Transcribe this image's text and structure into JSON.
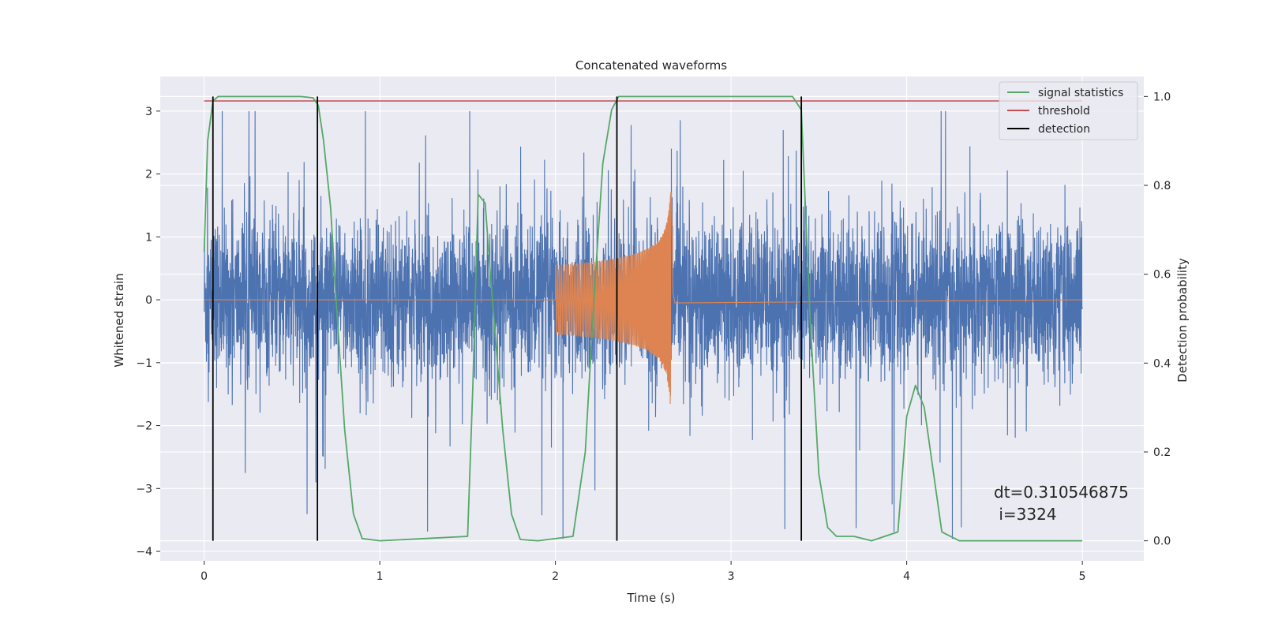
{
  "chart_data": {
    "type": "line",
    "title": "Concatenated waveforms",
    "xlabel": "Time (s)",
    "ylabel": "Whitened strain",
    "ylabel_right": "Detection probability",
    "xlim": [
      -0.25,
      5.35
    ],
    "ylim": [
      -4.15,
      3.55
    ],
    "ylim_right": [
      -0.045,
      1.045
    ],
    "x_ticks": [
      0,
      1,
      2,
      3,
      4,
      5
    ],
    "y_ticks": [
      -4,
      -3,
      -2,
      -1,
      0,
      1,
      2,
      3
    ],
    "y_ticks_right": [
      0.0,
      0.2,
      0.4,
      0.6,
      0.8,
      1.0
    ],
    "x_tick_labels": [
      "0",
      "1",
      "2",
      "3",
      "4",
      "5"
    ],
    "y_tick_labels": [
      "−4",
      "−3",
      "−2",
      "−1",
      "0",
      "1",
      "2",
      "3"
    ],
    "y_tick_labels_right": [
      "0.0",
      "0.2",
      "0.4",
      "0.6",
      "0.8",
      "1.0"
    ],
    "grid": true,
    "legend_position": "top-right",
    "colors": {
      "background": "#eaeaf2",
      "grid": "#ffffff",
      "whitened_strain": "#4c72b0",
      "injected_waveform": "#dd8452",
      "signal_statistics": "#55a868",
      "threshold": "#c44e52",
      "detection": "#000000"
    },
    "legend": [
      {
        "label": "signal statistics",
        "color_key": "signal_statistics"
      },
      {
        "label": "threshold",
        "color_key": "threshold"
      },
      {
        "label": "detection",
        "color_key": "detection"
      }
    ],
    "whitened_strain": {
      "x_range": [
        0,
        5
      ],
      "typical_amplitude": [
        -1.0,
        1.0
      ],
      "peak_amplitude": [
        -3.8,
        3.0
      ]
    },
    "injected_waveform": {
      "x_range": [
        2.0,
        2.66
      ],
      "amplitude_start": 0.55,
      "amplitude_peak": 1.7,
      "amplitude_min_peak": -2.3
    },
    "signal_statistics": {
      "x": [
        0.0,
        0.02,
        0.05,
        0.08,
        0.1,
        0.3,
        0.55,
        0.62,
        0.65,
        0.68,
        0.72,
        0.75,
        0.8,
        0.85,
        0.9,
        1.0,
        1.5,
        1.53,
        1.56,
        1.6,
        1.63,
        1.67,
        1.7,
        1.75,
        1.8,
        1.9,
        2.1,
        2.17,
        2.22,
        2.27,
        2.32,
        2.36,
        2.4,
        2.7,
        3.35,
        3.4,
        3.45,
        3.5,
        3.55,
        3.6,
        3.7,
        3.8,
        3.95,
        4.0,
        4.05,
        4.1,
        4.15,
        4.2,
        4.3,
        5.0
      ],
      "values": [
        0.65,
        0.9,
        0.99,
        1.0,
        1.0,
        1.0,
        1.0,
        0.997,
        0.98,
        0.9,
        0.75,
        0.55,
        0.25,
        0.06,
        0.005,
        0.0,
        0.01,
        0.35,
        0.78,
        0.76,
        0.6,
        0.4,
        0.25,
        0.06,
        0.003,
        0.0,
        0.01,
        0.2,
        0.55,
        0.85,
        0.97,
        1.0,
        1.0,
        1.0,
        1.0,
        0.97,
        0.5,
        0.15,
        0.03,
        0.01,
        0.01,
        0.0,
        0.02,
        0.28,
        0.35,
        0.3,
        0.16,
        0.02,
        0.0,
        0.0
      ]
    },
    "threshold": {
      "x": [
        0,
        5
      ],
      "value": 0.99
    },
    "detections": [
      0.05,
      0.645,
      2.35,
      3.4
    ],
    "annotation": {
      "line1": "dt=0.310546875",
      "line2": " i=3324"
    }
  }
}
